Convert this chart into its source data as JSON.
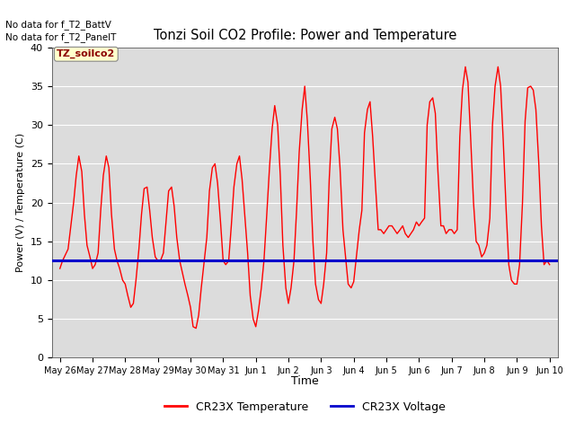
{
  "title": "Tonzi Soil CO2 Profile: Power and Temperature",
  "ylabel": "Power (V) / Temperature (C)",
  "xlabel": "Time",
  "top_text_line1": "No data for f_T2_BattV",
  "top_text_line2": "No data for f_T2_PanelT",
  "legend_label_box": "TZ_soilco2",
  "legend_temp": "CR23X Temperature",
  "legend_volt": "CR23X Voltage",
  "ylim": [
    0,
    40
  ],
  "yticks": [
    0,
    5,
    10,
    15,
    20,
    25,
    30,
    35,
    40
  ],
  "bg_color": "#dcdcdc",
  "temp_color": "#ff0000",
  "volt_color": "#0000cc",
  "volt_value": 12.5,
  "x_tick_labels": [
    "May 26",
    "May 27",
    "May 28",
    "May 29",
    "May 30",
    "May 31",
    "Jun 1",
    "Jun 2",
    "Jun 3",
    "Jun 4",
    "Jun 5",
    "Jun 6",
    "Jun 7",
    "Jun 8",
    "Jun 9",
    "Jun 10"
  ],
  "temp_data_x": [
    0.0,
    0.08,
    0.25,
    0.42,
    0.5,
    0.58,
    0.67,
    0.75,
    0.83,
    0.92,
    1.0,
    1.08,
    1.17,
    1.25,
    1.33,
    1.42,
    1.5,
    1.58,
    1.67,
    1.75,
    1.83,
    1.92,
    2.0,
    2.08,
    2.17,
    2.25,
    2.33,
    2.42,
    2.5,
    2.58,
    2.67,
    2.75,
    2.83,
    2.92,
    3.0,
    3.08,
    3.17,
    3.25,
    3.33,
    3.42,
    3.5,
    3.58,
    3.67,
    3.75,
    3.83,
    3.92,
    4.0,
    4.08,
    4.17,
    4.25,
    4.33,
    4.42,
    4.5,
    4.58,
    4.67,
    4.75,
    4.83,
    4.92,
    5.0,
    5.08,
    5.17,
    5.25,
    5.33,
    5.42,
    5.5,
    5.58,
    5.67,
    5.75,
    5.83,
    5.92,
    6.0,
    6.08,
    6.17,
    6.25,
    6.33,
    6.42,
    6.5,
    6.58,
    6.67,
    6.75,
    6.83,
    6.92,
    7.0,
    7.08,
    7.17,
    7.25,
    7.33,
    7.42,
    7.5,
    7.58,
    7.67,
    7.75,
    7.83,
    7.92,
    8.0,
    8.08,
    8.17,
    8.25,
    8.33,
    8.42,
    8.5,
    8.58,
    8.67,
    8.75,
    8.83,
    8.92,
    9.0,
    9.08,
    9.17,
    9.25,
    9.33,
    9.42,
    9.5,
    9.58,
    9.67,
    9.75,
    9.83,
    9.92,
    10.0,
    10.08,
    10.17,
    10.25,
    10.33,
    10.42,
    10.5,
    10.58,
    10.67,
    10.75,
    10.83,
    10.92,
    11.0,
    11.08,
    11.17,
    11.25,
    11.33,
    11.42,
    11.5,
    11.58,
    11.67,
    11.75,
    11.83,
    11.92,
    12.0,
    12.08,
    12.17,
    12.25,
    12.33,
    12.42,
    12.5,
    12.58,
    12.67,
    12.75,
    12.83,
    12.92,
    13.0,
    13.08,
    13.17,
    13.25,
    13.33,
    13.42,
    13.5,
    13.58,
    13.67,
    13.75,
    13.83,
    13.92,
    14.0,
    14.08,
    14.17,
    14.25,
    14.33,
    14.42,
    14.5,
    14.58,
    14.67,
    14.75,
    14.83,
    14.92,
    15.0
  ],
  "temp_data_y": [
    11.5,
    12.5,
    14.0,
    20.0,
    23.5,
    26.0,
    24.0,
    18.5,
    14.5,
    13.0,
    11.5,
    12.0,
    13.5,
    19.0,
    23.5,
    26.0,
    24.5,
    18.5,
    14.0,
    12.5,
    11.5,
    10.0,
    9.5,
    8.0,
    6.5,
    7.0,
    10.0,
    14.0,
    18.5,
    21.8,
    22.0,
    19.0,
    15.5,
    13.0,
    12.5,
    12.5,
    13.5,
    17.5,
    21.5,
    22.0,
    19.5,
    15.5,
    12.5,
    11.0,
    9.5,
    8.0,
    6.5,
    4.0,
    3.8,
    5.5,
    9.0,
    12.5,
    15.5,
    21.5,
    24.5,
    25.0,
    22.5,
    17.5,
    12.5,
    12.0,
    12.5,
    17.0,
    22.0,
    25.0,
    26.0,
    23.0,
    18.0,
    13.5,
    8.0,
    5.0,
    4.0,
    6.0,
    9.0,
    12.5,
    18.0,
    24.5,
    29.5,
    32.5,
    30.0,
    23.5,
    14.5,
    9.0,
    7.0,
    9.0,
    12.5,
    19.0,
    26.5,
    32.0,
    35.0,
    30.5,
    23.0,
    15.0,
    9.5,
    7.5,
    7.0,
    9.5,
    13.5,
    23.0,
    29.5,
    31.0,
    29.5,
    24.5,
    16.5,
    13.0,
    9.5,
    9.0,
    9.8,
    13.0,
    16.5,
    19.0,
    29.0,
    32.0,
    33.0,
    28.5,
    22.0,
    16.5,
    16.5,
    16.0,
    16.5,
    17.0,
    17.0,
    16.5,
    16.0,
    16.5,
    17.0,
    16.0,
    15.5,
    16.0,
    16.5,
    17.5,
    17.0,
    17.5,
    18.0,
    30.0,
    33.0,
    33.5,
    31.5,
    24.0,
    17.0,
    17.0,
    16.0,
    16.5,
    16.5,
    16.0,
    16.5,
    28.5,
    34.5,
    37.5,
    35.5,
    28.5,
    20.0,
    15.0,
    14.5,
    13.0,
    13.5,
    14.5,
    18.0,
    30.0,
    35.0,
    37.5,
    35.0,
    28.0,
    19.0,
    12.0,
    10.0,
    9.5,
    9.5,
    12.0,
    20.0,
    30.5,
    34.8,
    35.0,
    34.5,
    32.0,
    25.0,
    17.0,
    12.0,
    12.5,
    12.0
  ]
}
